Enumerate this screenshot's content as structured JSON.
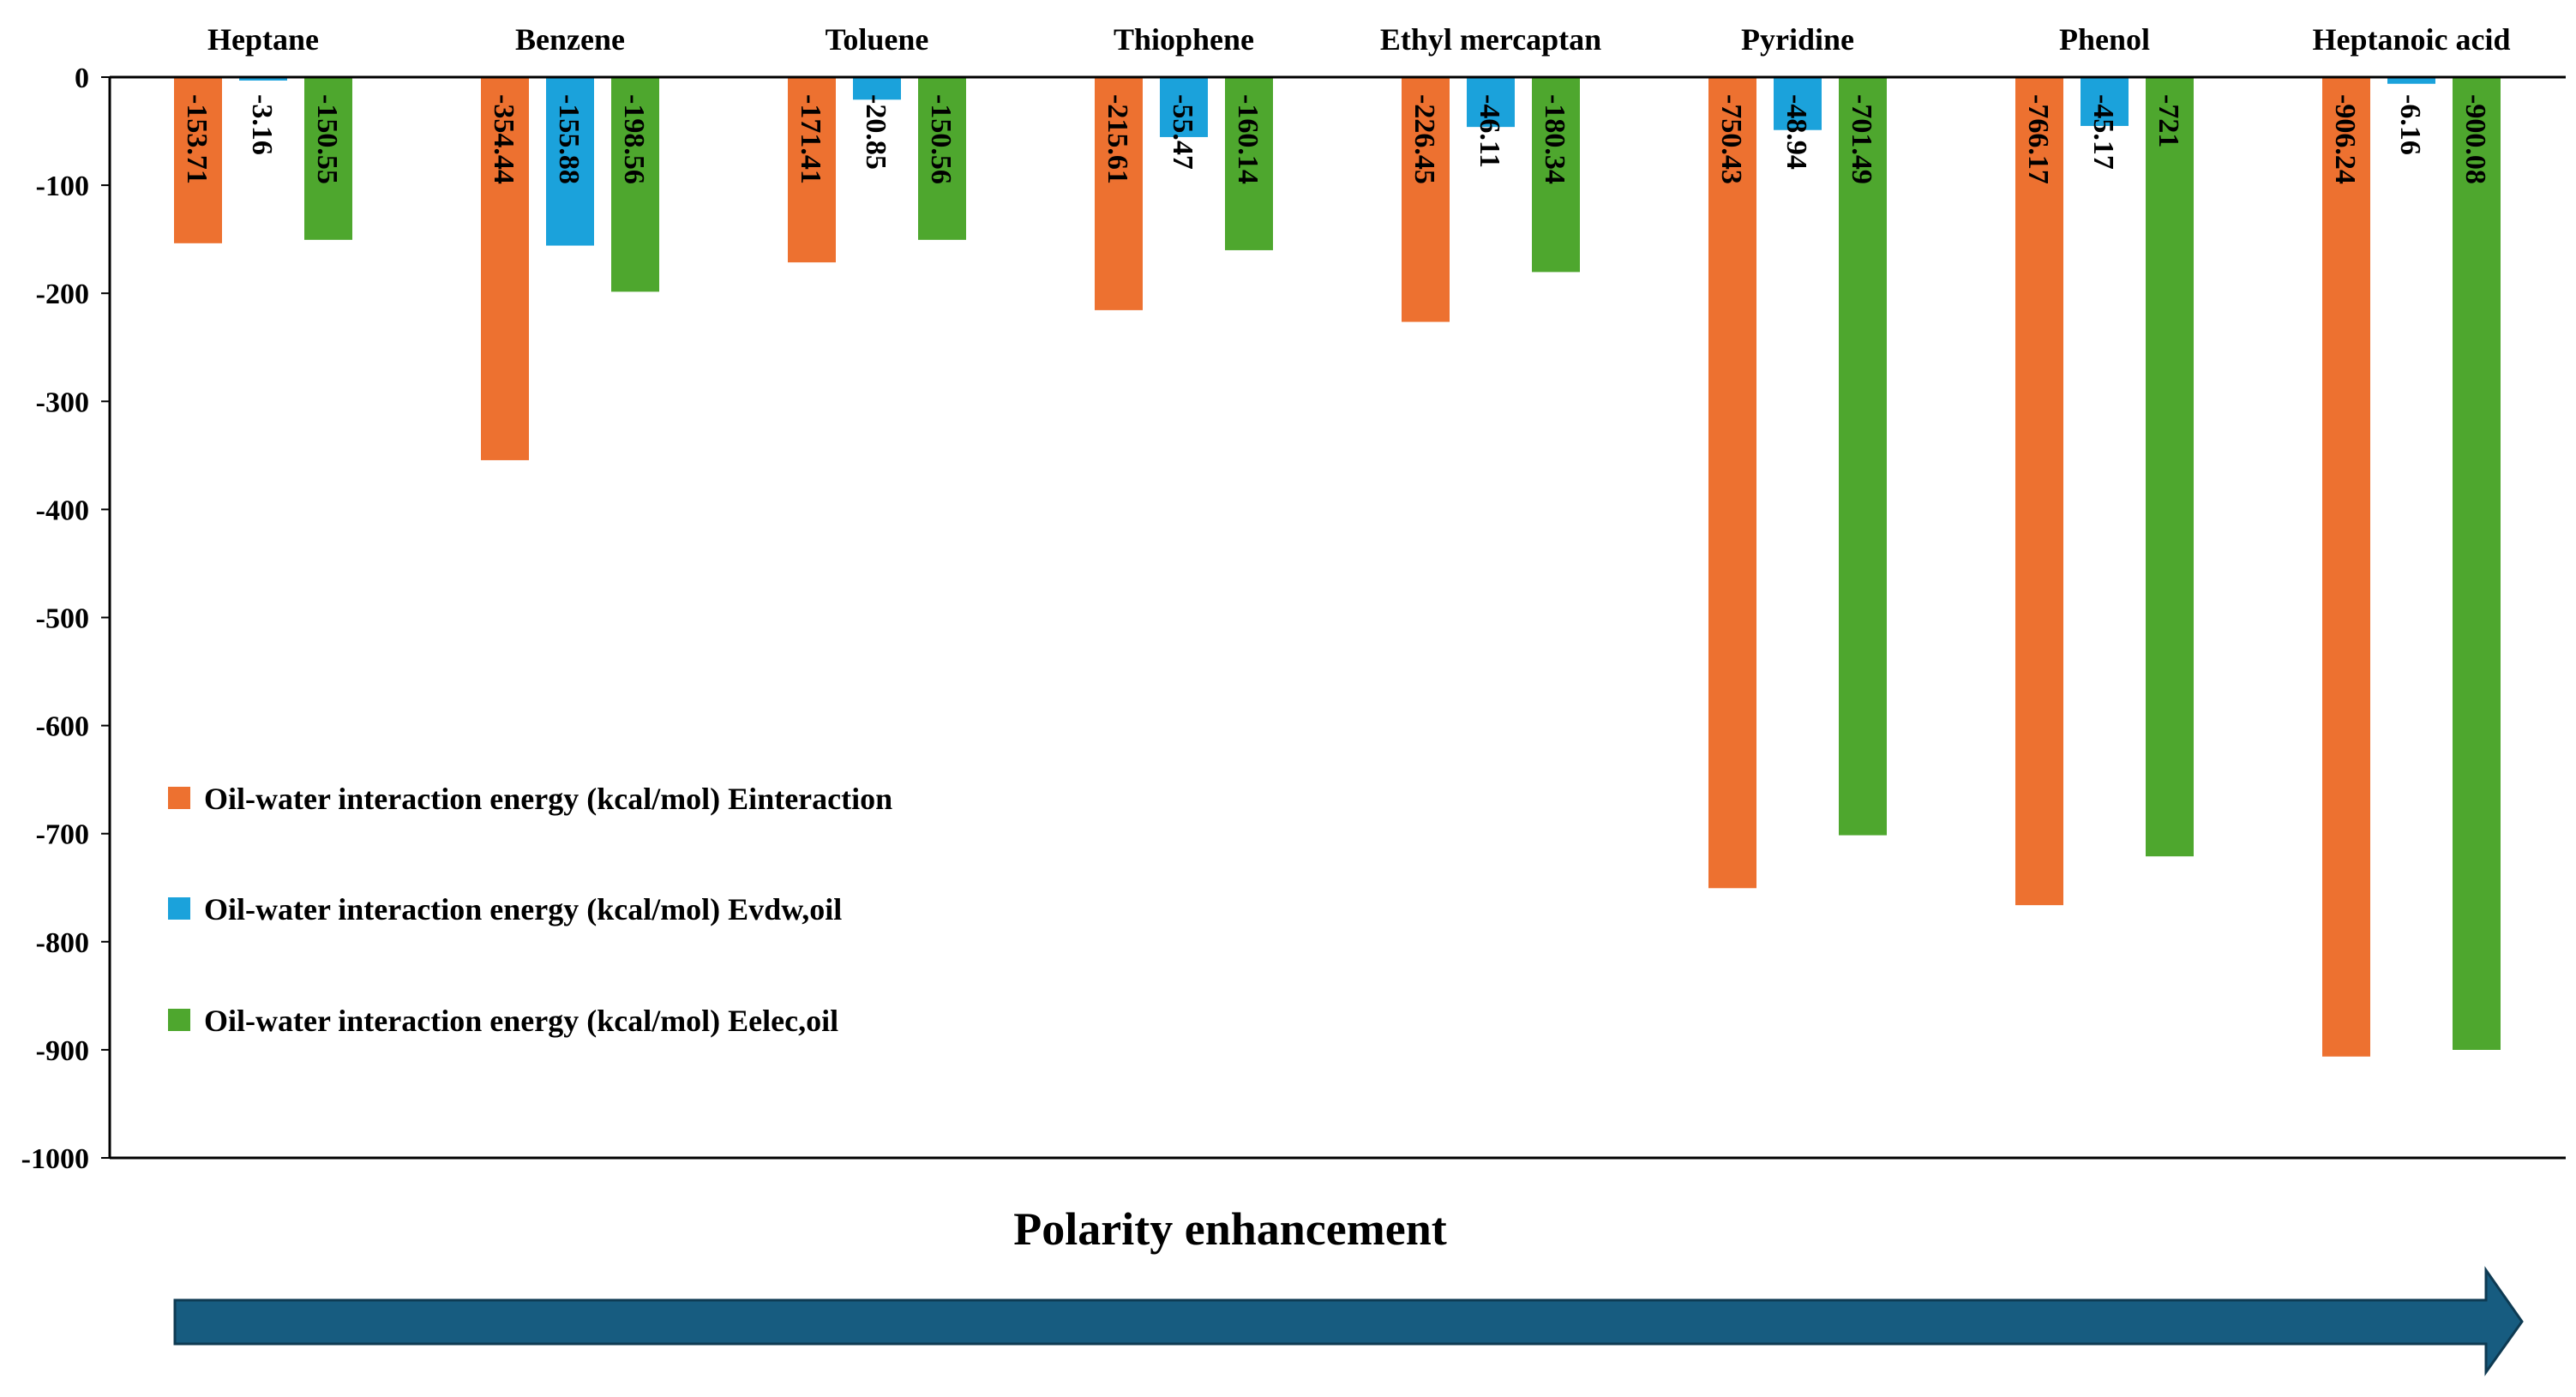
{
  "chart_data": {
    "type": "bar",
    "title": "",
    "xlabel": "",
    "ylabel": "",
    "categories": [
      "Heptane",
      "Benzene",
      "Toluene",
      "Thiophene",
      "Ethyl mercaptan",
      "Pyridine",
      "Phenol",
      "Heptanoic acid"
    ],
    "series": [
      {
        "name": "Oil-water interaction energy (kcal/mol) Einteraction",
        "color": "#ED7130",
        "values": [
          -153.71,
          -354.44,
          -171.41,
          -215.61,
          -226.45,
          -750.43,
          -766.17,
          -906.24
        ],
        "labels": [
          "-153.71",
          "-354.44",
          "-171.41",
          "-215.61",
          "-226.45",
          "-750.43",
          "-766.17",
          "-906.24"
        ]
      },
      {
        "name": "Oil-water interaction energy (kcal/mol) Evdw,oil",
        "color": "#1BA2DB",
        "values": [
          -3.16,
          -155.88,
          -20.85,
          -55.47,
          -46.11,
          -48.94,
          -45.17,
          -6.16
        ],
        "labels": [
          "-3.16",
          "-155.88",
          "-20.85",
          "-55.47",
          "-46.11",
          "-48.94",
          "-45.17",
          "-6.16"
        ]
      },
      {
        "name": "Oil-water interaction energy (kcal/mol) Eelec,oil",
        "color": "#4EA72E",
        "values": [
          -150.55,
          -198.56,
          -150.56,
          -160.14,
          -180.34,
          -701.49,
          -721,
          -900.08
        ],
        "labels": [
          "-150.55",
          "-198.56",
          "-150.56",
          "-160.14",
          "-180.34",
          "-701.49",
          "-721",
          "-900.08"
        ]
      }
    ],
    "ylim": [
      -1000,
      0
    ],
    "yticks": [
      0,
      -100,
      -200,
      -300,
      -400,
      -500,
      -600,
      -700,
      -800,
      -900,
      -1000
    ],
    "legend_position": "left-bottom inside plot",
    "grid": false,
    "annotation": {
      "text": "Polarity enhancement",
      "arrow_color": "#175C80"
    }
  }
}
